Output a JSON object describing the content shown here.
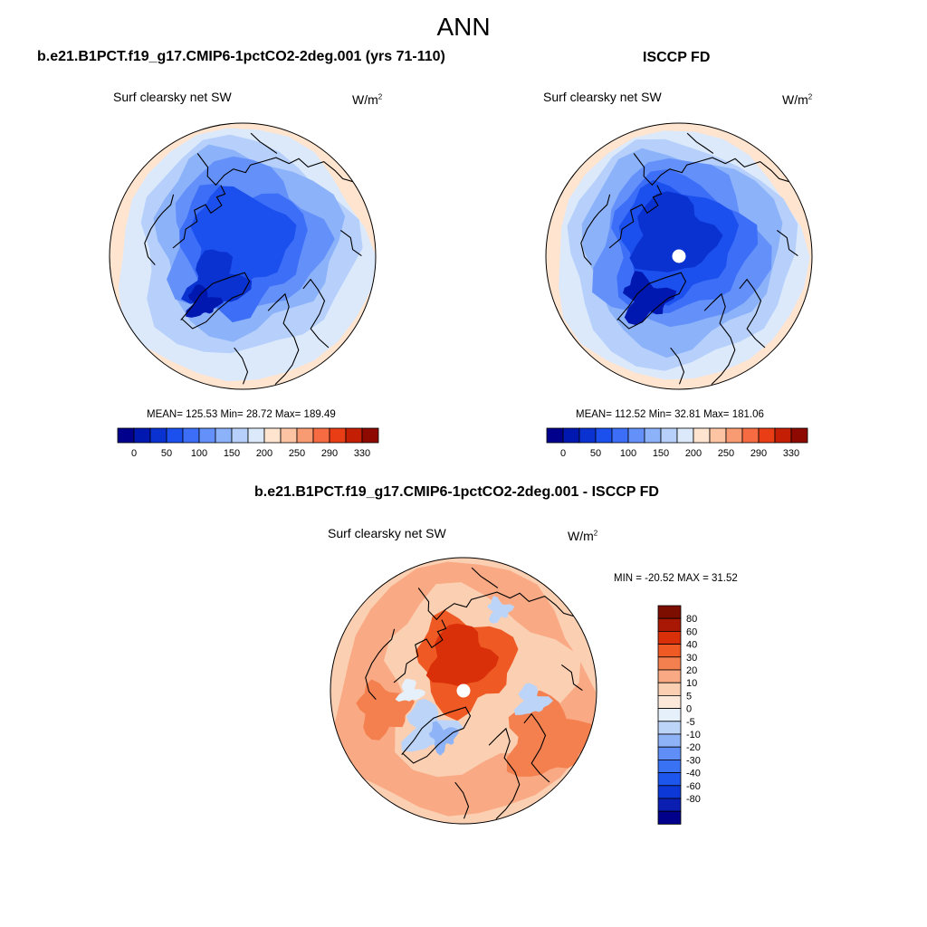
{
  "figure": {
    "title": "ANN"
  },
  "colors": {
    "seq": [
      "#00008c",
      "#0018b0",
      "#0a32d0",
      "#1c50ee",
      "#3c6ef8",
      "#6490fa",
      "#8cb2fa",
      "#b6d0fb",
      "#dce9fb",
      "#ffe4cf",
      "#fcc4a2",
      "#f99b72",
      "#f66b41",
      "#e93d16",
      "#c41e04",
      "#8e0a00"
    ],
    "diff": [
      "#00008a",
      "#0a1fb2",
      "#0b38d6",
      "#1c56ec",
      "#3a72f4",
      "#5f8ff6",
      "#8fb3f7",
      "#bcd4f8",
      "#e6f0fb",
      "#fde9da",
      "#fbcfb2",
      "#f9aa84",
      "#f4804f",
      "#ef5a24",
      "#d9300a",
      "#a81804",
      "#7c0e00"
    ],
    "land": "#000000",
    "hole": "#ffffff"
  },
  "chart_data": [
    {
      "type": "heatmap",
      "projection": "north-polar-stereographic",
      "title": "b.e21.B1PCT.f19_g17.CMIP6-1pctCO2-2deg.001 (yrs 71-110)",
      "variable": "Surf clearsky net SW",
      "units_base": "W/m",
      "units_exp": "2",
      "stats_text": "MEAN= 125.53  Min=  28.72  Max= 189.49",
      "mean": 125.53,
      "min": 28.72,
      "max": 189.49,
      "colorbar_labels": [
        "0",
        "50",
        "100",
        "150",
        "200",
        "250",
        "290",
        "330"
      ],
      "missing_pole": false
    },
    {
      "type": "heatmap",
      "projection": "north-polar-stereographic",
      "title": "ISCCP FD",
      "variable": "Surf clearsky net SW",
      "units_base": "W/m",
      "units_exp": "2",
      "stats_text": "MEAN= 112.52  Min=  32.81  Max= 181.06",
      "mean": 112.52,
      "min": 32.81,
      "max": 181.06,
      "colorbar_labels": [
        "0",
        "50",
        "100",
        "150",
        "200",
        "250",
        "290",
        "330"
      ],
      "missing_pole": true
    },
    {
      "type": "heatmap",
      "projection": "north-polar-stereographic",
      "title": "b.e21.B1PCT.f19_g17.CMIP6-1pctCO2-2deg.001 - ISCCP FD",
      "variable": "Surf clearsky net SW",
      "units_base": "W/m",
      "units_exp": "2",
      "stats_text": "MIN = -20.52 MAX =  31.52",
      "min": -20.52,
      "max": 31.52,
      "colorbar_labels": [
        "80",
        "60",
        "40",
        "30",
        "20",
        "10",
        "5",
        "0",
        "-5",
        "-10",
        "-20",
        "-30",
        "-40",
        "-60",
        "-80"
      ],
      "missing_pole": true
    }
  ]
}
